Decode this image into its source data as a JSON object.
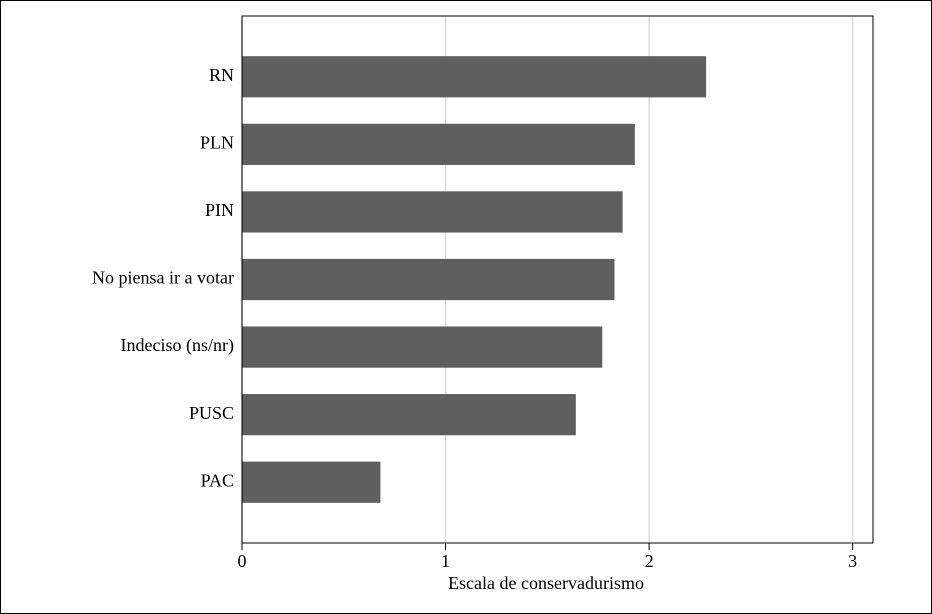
{
  "chart_data": {
    "type": "bar",
    "orientation": "horizontal",
    "categories": [
      "RN",
      "PLN",
      "PIN",
      "No piensa ir a votar",
      "Indeciso (ns/nr)",
      "PUSC",
      "PAC"
    ],
    "values": [
      2.28,
      1.93,
      1.87,
      1.83,
      1.77,
      1.64,
      0.68
    ],
    "color": "#5f5f5f",
    "xlabel": "Escala de conservadurismo",
    "xlim": [
      0,
      3.1
    ],
    "xticks": [
      0,
      1,
      2,
      3
    ],
    "grid": true
  }
}
